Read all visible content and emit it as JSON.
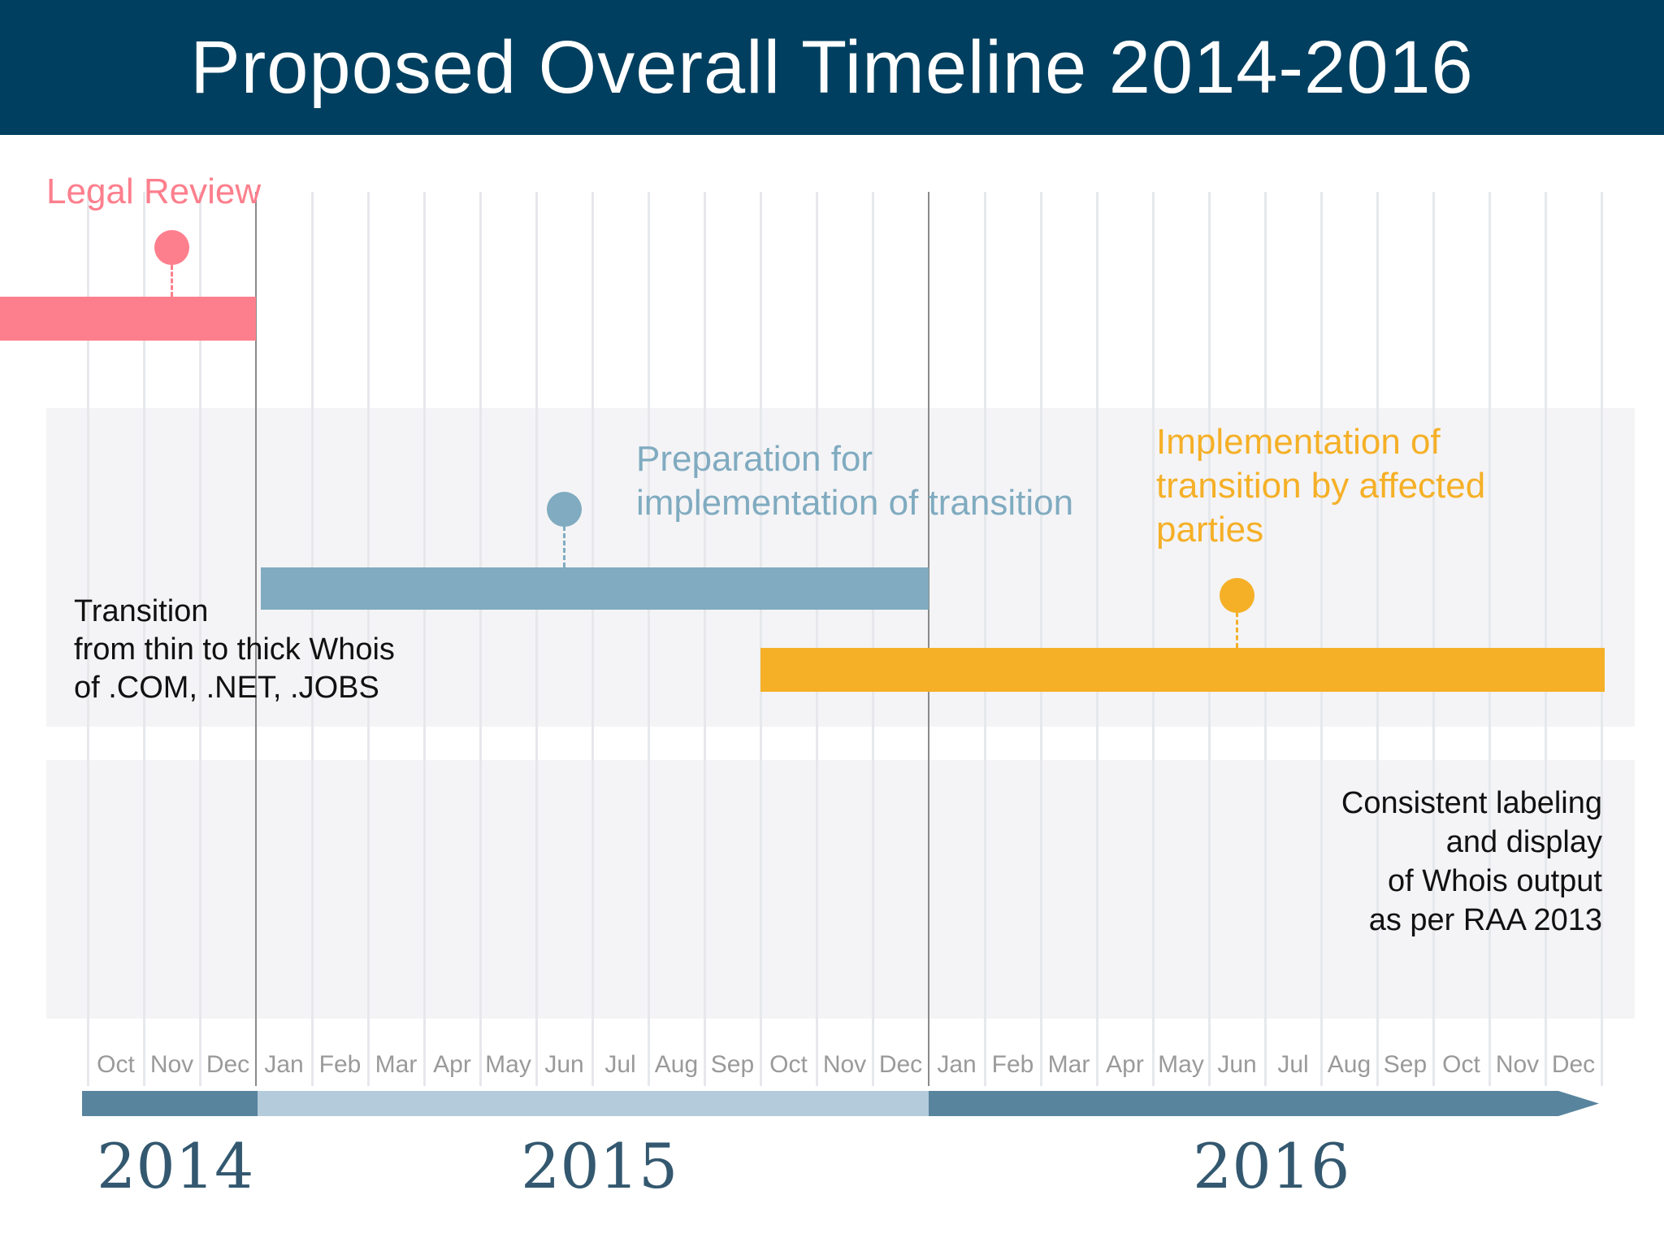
{
  "header": {
    "title": "Proposed Overall Timeline 2014-2016"
  },
  "colors": {
    "header_bg": "#003f5f",
    "legal": "#fd7f8d",
    "preparation": "#80abc0",
    "implementation": "#f5b027",
    "axis_dark": "#58849e",
    "axis_light": "#b4cbdb",
    "year_text": "#33586f"
  },
  "tasks": [
    {
      "id": "legal",
      "label": "Legal Review",
      "start": "2014-07",
      "end": "2014-12",
      "milestone": "2014-11"
    },
    {
      "id": "preparation",
      "label": "Preparation for\nimplementation of transition",
      "start": "2015-01",
      "end": "2015-12",
      "milestone": "2015-06"
    },
    {
      "id": "implementation",
      "label": "Implementation of\ntransition by affected\nparties",
      "start": "2015-10",
      "end": "2016-12",
      "milestone": "2016-06"
    }
  ],
  "rows": [
    {
      "label": "Transition\nfrom thin to thick Whois\nof .COM, .NET, .JOBS"
    },
    {
      "label": "Consistent labeling\nand display\nof Whois output\nas per RAA 2013"
    }
  ],
  "axis": {
    "months": [
      "Oct",
      "Nov",
      "Dec",
      "Jan",
      "Feb",
      "Mar",
      "Apr",
      "May",
      "Jun",
      "Jul",
      "Aug",
      "Sep",
      "Oct",
      "Nov",
      "Dec",
      "Jan",
      "Feb",
      "Mar",
      "Apr",
      "May",
      "Jun",
      "Jul",
      "Aug",
      "Sep",
      "Oct",
      "Nov",
      "Dec"
    ],
    "years": [
      "2014",
      "2015",
      "2016"
    ]
  }
}
